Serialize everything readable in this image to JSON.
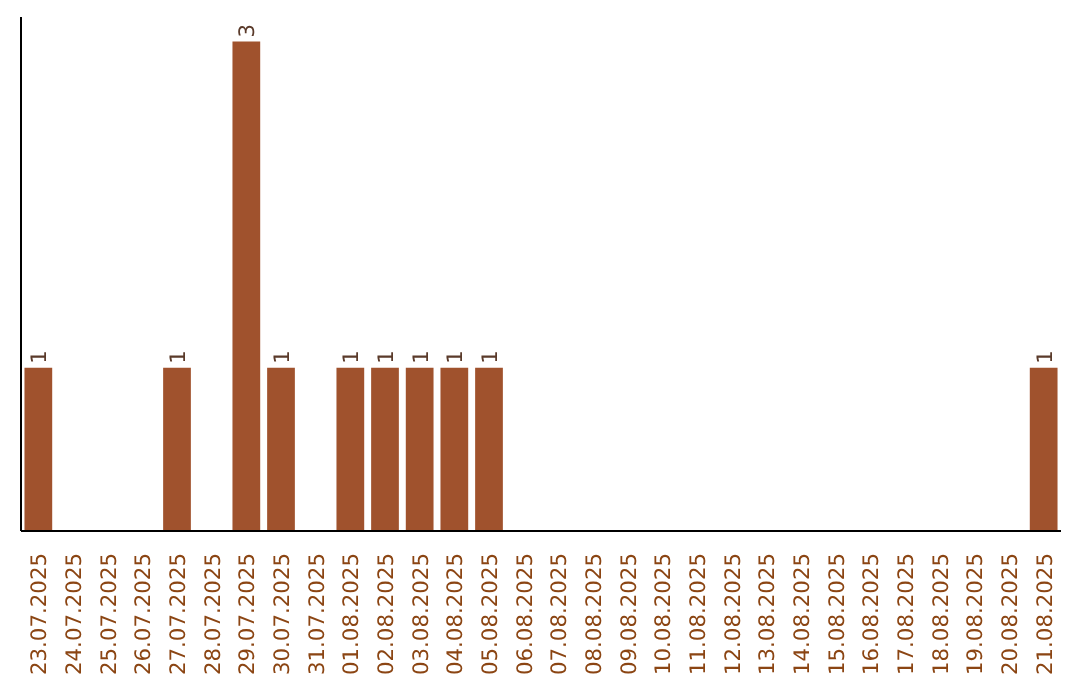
{
  "chart_data": {
    "type": "bar",
    "categories": [
      "23.07.2025",
      "24.07.2025",
      "25.07.2025",
      "26.07.2025",
      "27.07.2025",
      "28.07.2025",
      "29.07.2025",
      "30.07.2025",
      "31.07.2025",
      "01.08.2025",
      "02.08.2025",
      "03.08.2025",
      "04.08.2025",
      "05.08.2025",
      "06.08.2025",
      "07.08.2025",
      "08.08.2025",
      "09.08.2025",
      "10.08.2025",
      "11.08.2025",
      "12.08.2025",
      "13.08.2025",
      "14.08.2025",
      "15.08.2025",
      "16.08.2025",
      "17.08.2025",
      "18.08.2025",
      "19.08.2025",
      "20.08.2025",
      "21.08.2025"
    ],
    "values": [
      1,
      0,
      0,
      0,
      1,
      0,
      3,
      1,
      0,
      1,
      1,
      1,
      1,
      1,
      0,
      0,
      0,
      0,
      0,
      0,
      0,
      0,
      0,
      0,
      0,
      0,
      0,
      0,
      0,
      1
    ],
    "value_labels": [
      "1",
      null,
      null,
      null,
      "1",
      null,
      "3",
      "1",
      null,
      "1",
      "1",
      "1",
      "1",
      "1",
      null,
      null,
      null,
      null,
      null,
      null,
      null,
      null,
      null,
      null,
      null,
      null,
      null,
      null,
      null,
      "1"
    ],
    "color": "#a0522d",
    "tick_labels": "x",
    "grid": false
  }
}
